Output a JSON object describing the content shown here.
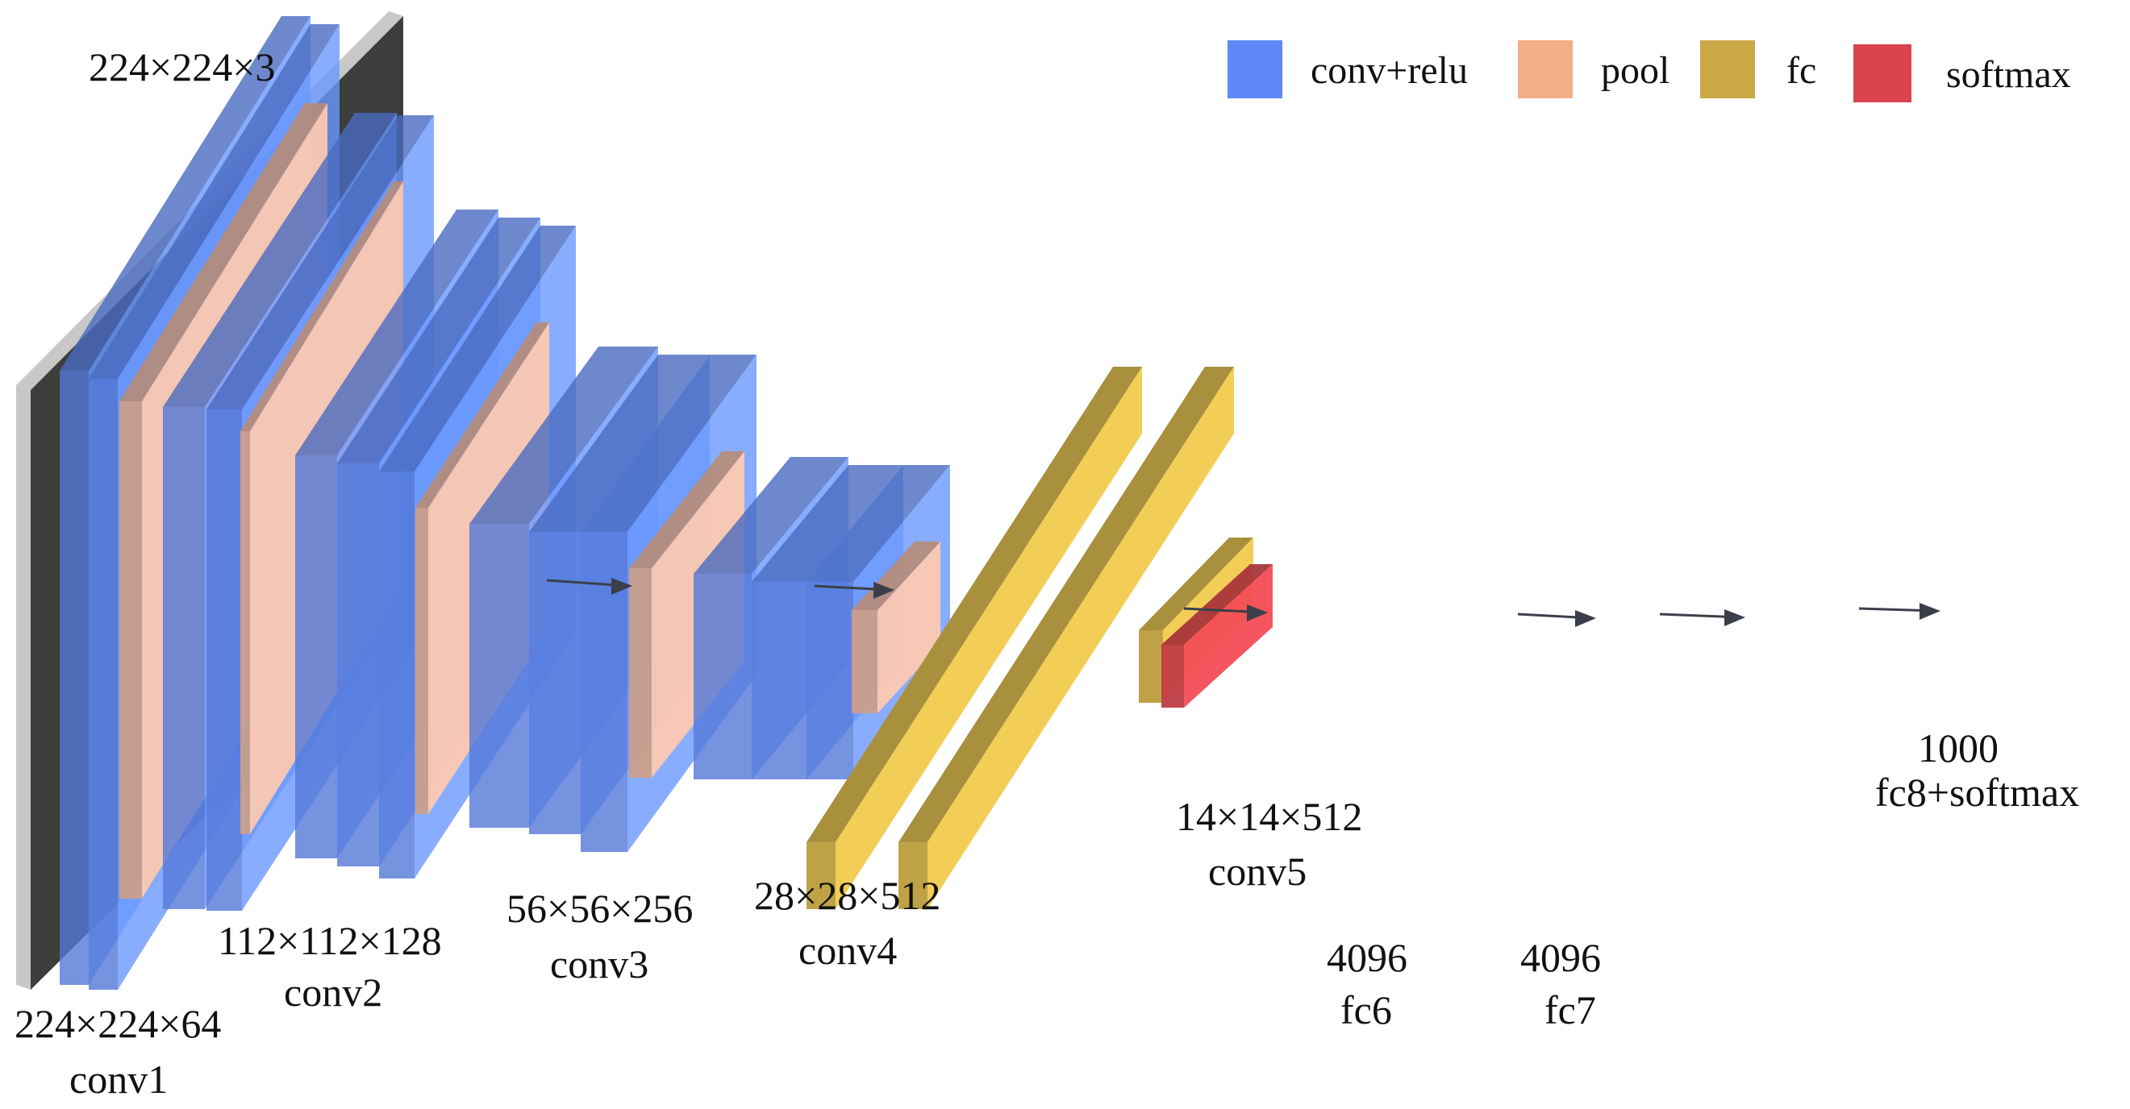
{
  "legend": [
    {
      "key": "conv",
      "label": "conv+relu",
      "color": "#5f88f6"
    },
    {
      "key": "pool",
      "label": "pool",
      "color": "#f2ae86"
    },
    {
      "key": "fc",
      "label": "fc",
      "color": "#caa846"
    },
    {
      "key": "softmax",
      "label": "softmax",
      "color": "#d9444d"
    }
  ],
  "colors": {
    "conv_front": "#5f88f6",
    "pool_front": "#e9b49c",
    "fc_front": "#d9b84e",
    "softmax_front": "#d9444d",
    "arrow": "#3a3f4a",
    "input_frame": "#c8c8c8",
    "input_image": "#3b3e3a"
  },
  "labels": {
    "input": "224×224×3",
    "conv1_dims": "224×224×64",
    "conv1_name": "conv1",
    "conv2_dims": "112×112×128",
    "conv2_name": "conv2",
    "conv3_dims": "56×56×256",
    "conv3_name": "conv3",
    "conv4_dims": "28×28×512",
    "conv4_name": "conv4",
    "conv5_dims": "14×14×512",
    "conv5_name": "conv5",
    "fc6_dims": "4096",
    "fc6_name": "fc6",
    "fc7_dims": "4096",
    "fc7_name": "fc7",
    "fc8_dims": "1000",
    "fc8_name": "fc8+softmax"
  }
}
